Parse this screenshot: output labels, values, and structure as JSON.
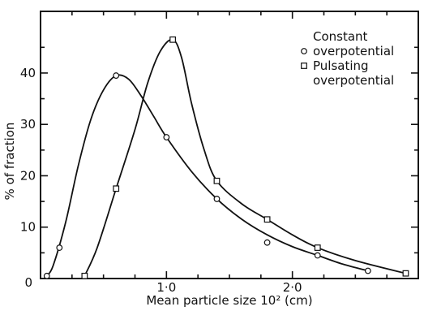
{
  "chart_data": {
    "type": "line",
    "xlabel": "Mean particle size  10² (cm)",
    "ylabel": "% of fraction",
    "xlim": [
      0,
      3.0
    ],
    "ylim": [
      0,
      52
    ],
    "origin_label": "0",
    "x_ticks": [
      {
        "value": 1.0,
        "label": "1·0"
      },
      {
        "value": 2.0,
        "label": "2·0"
      }
    ],
    "x_minor_ticks": [
      0.25,
      0.5,
      0.75,
      1.25,
      1.5,
      1.75,
      2.25,
      2.5,
      2.75
    ],
    "y_ticks": [
      {
        "value": 10,
        "label": "10"
      },
      {
        "value": 20,
        "label": "20"
      },
      {
        "value": 30,
        "label": "30"
      },
      {
        "value": 40,
        "label": "40"
      }
    ],
    "y_minor_ticks": [
      5,
      15,
      25,
      35,
      45
    ],
    "legend": {
      "placement": "top-right",
      "title": "Constant",
      "entries": [
        {
          "marker": "circle",
          "lines": [
            "overpotential"
          ]
        },
        {
          "marker": "square",
          "lines": [
            "Pulsating",
            "overpotential"
          ]
        }
      ]
    },
    "series": [
      {
        "marker": "circle",
        "points": [
          [
            0.05,
            0.5
          ],
          [
            0.15,
            6
          ],
          [
            0.6,
            39.5
          ],
          [
            1.0,
            27.5
          ],
          [
            1.4,
            15.5
          ],
          [
            1.8,
            7
          ],
          [
            2.2,
            4.5
          ],
          [
            2.6,
            1.5
          ]
        ],
        "curve": [
          [
            0.05,
            0.5
          ],
          [
            0.1,
            2.5
          ],
          [
            0.2,
            11
          ],
          [
            0.3,
            22
          ],
          [
            0.4,
            31
          ],
          [
            0.5,
            36.7
          ],
          [
            0.6,
            39.5
          ],
          [
            0.7,
            38.8
          ],
          [
            0.8,
            35.5
          ],
          [
            0.9,
            31.5
          ],
          [
            1.0,
            27.5
          ],
          [
            1.2,
            20.8
          ],
          [
            1.4,
            15.5
          ],
          [
            1.6,
            11.5
          ],
          [
            1.8,
            8.5
          ],
          [
            2.0,
            6.2
          ],
          [
            2.2,
            4.5
          ],
          [
            2.4,
            2.8
          ],
          [
            2.6,
            1.5
          ]
        ]
      },
      {
        "marker": "square",
        "points": [
          [
            0.35,
            0.5
          ],
          [
            0.6,
            17.5
          ],
          [
            1.05,
            46.5
          ],
          [
            1.4,
            19
          ],
          [
            1.8,
            11.5
          ],
          [
            2.2,
            6
          ],
          [
            2.9,
            1
          ]
        ],
        "curve": [
          [
            0.35,
            0.5
          ],
          [
            0.45,
            6
          ],
          [
            0.6,
            17.5
          ],
          [
            0.75,
            29
          ],
          [
            0.85,
            38
          ],
          [
            0.95,
            44.2
          ],
          [
            1.05,
            46.5
          ],
          [
            1.12,
            43
          ],
          [
            1.2,
            34
          ],
          [
            1.3,
            25
          ],
          [
            1.4,
            19
          ],
          [
            1.6,
            14.5
          ],
          [
            1.8,
            11.5
          ],
          [
            2.0,
            8.5
          ],
          [
            2.2,
            6
          ],
          [
            2.5,
            3.5
          ],
          [
            2.9,
            1
          ]
        ]
      }
    ]
  }
}
